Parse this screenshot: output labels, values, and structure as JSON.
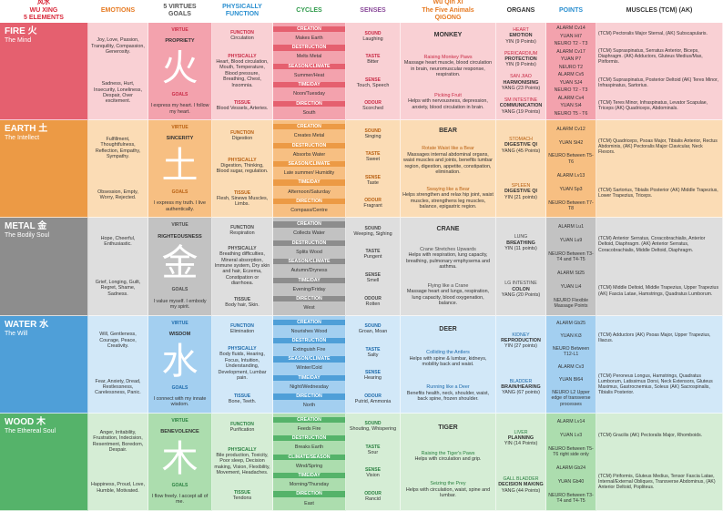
{
  "header": [
    [
      "风水",
      "WU XING",
      "5 ELEMENTS"
    ],
    [
      "EMOTIONS"
    ],
    [
      "5 VIRTUES",
      "GOALS"
    ],
    [
      "PHYSICALLY",
      "FUNCTION"
    ],
    [
      "CYCLES"
    ],
    [
      "SENSES"
    ],
    [
      "Wu Qin Xi",
      "The Five Animals",
      "QIGONG"
    ],
    [
      "ORGANS"
    ],
    [
      "POINTS"
    ],
    [
      "MUSCLES (TCM) (AK)"
    ]
  ],
  "rows": [
    {
      "element": "FIRE 火",
      "spirit": "The Mind",
      "emotions": [
        "Joy, Love, Passion, Tranquility, Compassion, Generosity.",
        "Sadness, Hurt, Insecurity, Loneliness, Despair, Over excitement."
      ],
      "virtue": [
        "VIRTUE",
        "PROPRIETY",
        "火",
        "GOALS",
        "I express my heart. I follow my heart."
      ],
      "function": [
        [
          "FUNCTION",
          "Circulation"
        ],
        [
          "PHYSICALLY",
          "Heart, Blood circulation, Mouth, Temperature, Blood pressure, Breathing, Chest, Insomnia."
        ],
        [
          "TISSUE",
          "Blood Vessels, Arteries."
        ]
      ],
      "cycles": [
        [
          "CREATION",
          "Makes Earth"
        ],
        [
          "DESTRUCTION",
          "Melts Metal"
        ],
        [
          "SEASON/CLIMATE",
          "Summer/Heat"
        ],
        [
          "TIME/DAY",
          "Noon/Tuesday"
        ],
        [
          "DIRECTION",
          "South"
        ]
      ],
      "senses": [
        [
          "SOUND",
          "Laughing"
        ],
        [
          "TASTE",
          "Bitter"
        ],
        [
          "SENSE",
          "Touch, Speech"
        ],
        [
          "ODOUR",
          "Scorched"
        ]
      ],
      "qigong": {
        "animal": "MONKEY",
        "exercises": [
          [
            "Raising Monkey Paws",
            "Massage heart muscle, blood circulation in brain, neuromuscular response, respiration."
          ],
          [
            "Picking Fruit",
            "Helps with nervousness, depression, anxiety, blood circulation in brain."
          ]
        ]
      },
      "organs": [
        [
          "HEART",
          "EMOTION",
          "YIN (9 Points)"
        ],
        [
          "PERICARDIUM",
          "PROTECTION",
          "YIN (9 Points)"
        ],
        [
          "SAN JIAO",
          "HARMONISING",
          "YANG (23 Points)"
        ],
        [
          "SM INTESTINE",
          "COMMUNICATION",
          "YANG (19 Points)"
        ]
      ],
      "points": [
        "ALARM Cv14",
        "YUAN Ht7",
        "NEURO T2 - T3",
        "ALARM Cv17",
        "YUAN P7",
        "NEURO T2",
        "ALARM Cv5",
        "YUAN SJ4",
        "NEURO T2 - T3",
        "ALARM Cv4",
        "YUAN Si4",
        "NEURO T5 - T6"
      ],
      "muscles": [
        "(TCM) Pectoralis Major Sternal, (AK) Subscapularis.",
        "(TCM) Supraspinatus, Serratus Anterior, Biceps, Diaphragm. (AK) Adductors, Gluteus Medius/Max, Piriformis.",
        "(TCM) Supraspinatus, Posterior Deltoid (AK) Teres Minor, Infraspinatus, Sartorius.",
        "(TCM) Teres Minor, Infraspinatus, Levator Scapulae, Triceps (AK) Quadriceps, Abdominals."
      ]
    },
    {
      "element": "EARTH 土",
      "spirit": "The Intellect",
      "emotions": [
        "Fulfillment, Thoughtfulness, Reflection, Empathy, Sympathy.",
        "Obsession, Empty, Worry, Rejected."
      ],
      "virtue": [
        "VIRTUE",
        "SINCERITY",
        "土",
        "GOALS",
        "I express my truth. I live authentically."
      ],
      "function": [
        [
          "FUNCTION",
          "Digestion"
        ],
        [
          "PHYSICALLY",
          "Digestion, Thinking, Blood sugar, regulation."
        ],
        [
          "TISSUE",
          "Flesh, Sinews Muscles, Limbs."
        ]
      ],
      "cycles": [
        [
          "CREATION",
          "Creates Metal"
        ],
        [
          "DESTRUCTION",
          "Absorbs Water"
        ],
        [
          "SEASON/CLIMATE",
          "Late summer/ Humidity"
        ],
        [
          "TIME/DAY",
          "Afternoon/Saturday"
        ],
        [
          "DIRECTION",
          "Compass/Centre"
        ]
      ],
      "senses": [
        [
          "SOUND",
          "Singing"
        ],
        [
          "TASTE",
          "Sweet"
        ],
        [
          "SENSE",
          "Taste"
        ],
        [
          "ODOUR",
          "Fragrant"
        ]
      ],
      "qigong": {
        "animal": "BEAR",
        "exercises": [
          [
            "Rotate Waist like a Bear",
            "Massages internal abdominal organs, waist muscles and joints, benefits lumbar region, digestion, appetite, constipation, elimination."
          ],
          [
            "Swaying like a Bear",
            "Helps strengthen and relax hip joint, waist muscles, strengthens leg muscles, balance, epigastric region."
          ]
        ]
      },
      "organs": [
        [
          "STOMACH",
          "DIGESTIVE QI",
          "YANG (45 Points)"
        ],
        [
          "SPLEEN",
          "DIGESTIVE QI",
          "YIN (21 points)"
        ]
      ],
      "points": [
        "ALARM Cv12",
        "YUAN St42",
        "NEURO Between T5-T6",
        "ALARM Lv13",
        "YUAN Sp3",
        "NEURO Between T7-T8"
      ],
      "muscles": [
        "(TCM) Quadriceps, Psoas Major, Tibialis Anterior, Rectus Abdominis, (AK) Pectoralis Major Clavicular, Neck Flexors.",
        "(TCM) Sartorius, Tibialis Posterior (AK) Middle Trapezius, Lower Trapezius, Triceps."
      ]
    },
    {
      "element": "METAL 金",
      "spirit": "The Bodily Soul",
      "emotions": [
        "Hope, Cheerful, Enthusiastic.",
        "Grief, Longing, Guilt, Regret, Shame, Sadness."
      ],
      "virtue": [
        "VIRTUE",
        "RIGHTEOUSNESS",
        "金",
        "GOALS",
        "I value myself. I embody my spirit."
      ],
      "function": [
        [
          "FUNCTION",
          "Respiration"
        ],
        [
          "PHYSICALLY",
          "Breathing difficulties, Mineral absorption, Immune system, Dry skin and hair, Eczema, Constipation or diarrhoea."
        ],
        [
          "TISSUE",
          "Body hair, Skin."
        ]
      ],
      "cycles": [
        [
          "CREATION",
          "Collects Water"
        ],
        [
          "DESTRUCTION",
          "Splits Wood"
        ],
        [
          "SEASON/CLIMATE",
          "Autumn/Dryness"
        ],
        [
          "TIME/DAY",
          "Evening/Friday"
        ],
        [
          "DIRECTION",
          "West"
        ]
      ],
      "senses": [
        [
          "SOUND",
          "Weeping, Sighing"
        ],
        [
          "TASTE",
          "Pungent"
        ],
        [
          "SENSE",
          "Smell"
        ],
        [
          "ODOUR",
          "Rotten"
        ]
      ],
      "qigong": {
        "animal": "CRANE",
        "exercises": [
          [
            "Crane Stretches Upwards",
            "Helps with respiration, lung capacity, breathing, pulmonary emphysema and asthma."
          ],
          [
            "Flying like a Crane",
            "Massage heart and lungs, respiration, lung capacity, blood oxygenation, balance."
          ]
        ]
      },
      "organs": [
        [
          "LUNG",
          "BREATHING",
          "YIN (11 points)"
        ],
        [
          "LG INTESTINE",
          "COLON",
          "YANG (20 Points)"
        ]
      ],
      "points": [
        "ALARM Lu1",
        "YUAN Lu9",
        "NEURO Between T3-T4 and T4-T5",
        "ALARM St25",
        "YUAN Li4",
        "NEURO Flexible Massage Points"
      ],
      "muscles": [
        "(TCM) Anterior Serratus, Coracobrachialis, Anterior Deltoid, Diaphragm. (AK) Anterior Serratus, Coracobrachialis, Middle Deltoid, Diaphragm.",
        "(TCM) Middle Deltoid, Middle Trapezius, Upper Trapezius (AK) Fascia Latae, Hamstrings, Quadratus Lumborum."
      ]
    },
    {
      "element": "WATER 水",
      "spirit": "The Will",
      "emotions": [
        "Will, Gentleness, Courage, Peace, Creativity.",
        "Fear, Anxiety, Dread, Restlessness, Carelessness, Panic."
      ],
      "virtue": [
        "VIRTUE",
        "WISDOM",
        "水",
        "GOALS",
        "I connect with my innate wisdom."
      ],
      "function": [
        [
          "FUNCTION",
          "Elimination"
        ],
        [
          "PHYSICALLY",
          "Body fluids, Hearing, Focus, Intuition, Understanding, Development, Lumbar pain."
        ],
        [
          "TISSUE",
          "Bone, Teeth."
        ]
      ],
      "cycles": [
        [
          "CREATION",
          "Nourishes Wood"
        ],
        [
          "DESTRUCTION",
          "Extinguish Fire"
        ],
        [
          "SEASON/CLIMATE",
          "Winter/Cold"
        ],
        [
          "TIME/DAY",
          "Night/Wednesday"
        ],
        [
          "DIRECTION",
          "North"
        ]
      ],
      "senses": [
        [
          "SOUND",
          "Groan, Moan"
        ],
        [
          "TASTE",
          "Salty"
        ],
        [
          "SENSE",
          "Hearing"
        ],
        [
          "ODOUR",
          "Putrid, Ammonia"
        ]
      ],
      "qigong": {
        "animal": "DEER",
        "exercises": [
          [
            "Colliding the Antlers",
            "Helps with spine & lumbar, kidneys, mobility back and waist."
          ],
          [
            "Running like a Deer",
            "Benefits health, neck, shoulder, waist, back spine, frozen shoulder."
          ]
        ]
      },
      "organs": [
        [
          "KIDNEY",
          "REPRODUCTION",
          "YIN (27 points)"
        ],
        [
          "BLADDER",
          "BRAIN/HEARING",
          "YANG (67 points)"
        ]
      ],
      "points": [
        "ALARM Gb25",
        "YUAN Ki3",
        "NEURO Between T12-L1",
        "ALARM Cv3",
        "YUAN Bl64",
        "NEURO L2 Upper edge of transverse processes"
      ],
      "muscles": [
        "(TCM) Adductors (AK) Psoas Major, Upper Trapezius, Iliacus.",
        "(TCM) Peroneus Longus, Hamstrings, Quadratus Lumborum, Latissimus Dorsi, Neck Extensors, Gluteus Maximus, Gastrocnemius, Soleus (AK) Sacrospinalis, Tibialis Posterior."
      ]
    },
    {
      "element": "WOOD 木",
      "spirit": "The Ethereal Soul",
      "emotions": [
        "Anger, Irritability, Frustration, Indecision, Resentment, Boredom, Despair.",
        "Happiness, Proud, Love, Humble, Motivated."
      ],
      "virtue": [
        "VIRTUE",
        "BENEVOLENCE",
        "木",
        "GOALS",
        "I flow freely. I accept all of me."
      ],
      "function": [
        [
          "FUNCTION",
          "Purification"
        ],
        [
          "PHYSICALLY",
          "Bile production, Toxicity, Poor sleep, Decision making, Vision, Flexibility, Movement, Headaches."
        ],
        [
          "TISSUE",
          "Tendons"
        ]
      ],
      "cycles": [
        [
          "CREATION",
          "Feeds Fire"
        ],
        [
          "DESTRUCTION",
          "Breaks Earth"
        ],
        [
          "CLIMATE/SEASON",
          "Wind/Spring"
        ],
        [
          "TIME/DAY",
          "Morning/Thursday"
        ],
        [
          "DIRECTION",
          "East"
        ]
      ],
      "senses": [
        [
          "SOUND",
          "Shouting, Whispering"
        ],
        [
          "TASTE",
          "Sour"
        ],
        [
          "SENSE",
          "Vision"
        ],
        [
          "ODOUR",
          "Rancid"
        ]
      ],
      "qigong": {
        "animal": "TIGER",
        "exercises": [
          [
            "Raising the Tiger's Paws",
            "Helps with circulation and grip."
          ],
          [
            "Seizing the Prey",
            "Helps with circulation, waist, spine and lumbar."
          ]
        ]
      },
      "organs": [
        [
          "LIVER",
          "PLANNING",
          "YIN (14 Points)"
        ],
        [
          "GALL BLADDER",
          "DECISION MAKING",
          "YANG (44 Points)"
        ]
      ],
      "points": [
        "ALARM Lv14",
        "YUAN Lv3",
        "NEURO Between T5-T6 right side only",
        "ALARM Gb24",
        "YUAN Gb40",
        "NEURO Between T3-T4 and T4-T5"
      ],
      "muscles": [
        "(TCM) Gracilis (AK) Pectoralis Major, Rhomboids.",
        "(TCM) Piriformis, Gluteus Medius, Tensor Fascia Latae, Internal/External Obliques, Transverse Abdominus, (AK) Anterior Deltoid, Popliteus."
      ]
    }
  ]
}
